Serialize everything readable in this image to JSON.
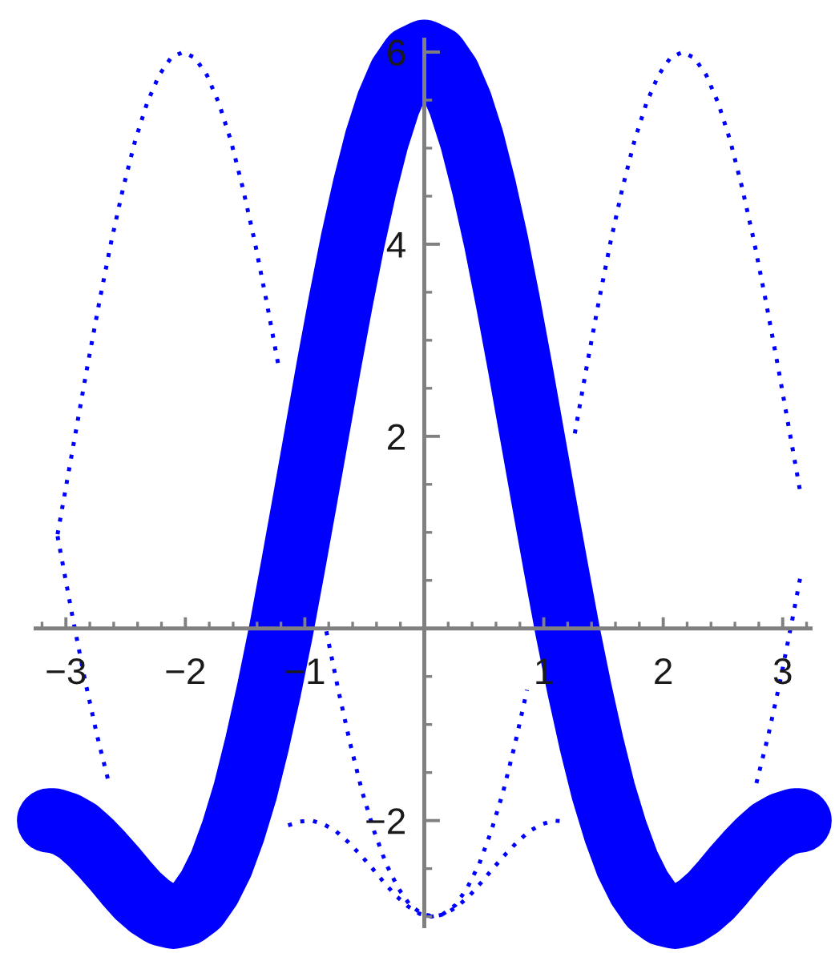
{
  "chart_data": {
    "type": "line",
    "xlim": [
      -3.27,
      3.25
    ],
    "ylim": [
      -3.12,
      6.15
    ],
    "xticks": [
      {
        "value": -3.2,
        "label": null
      },
      {
        "value": -3,
        "label": "−3"
      },
      {
        "value": -2.8,
        "label": null
      },
      {
        "value": -2.6,
        "label": null
      },
      {
        "value": -2.4,
        "label": null
      },
      {
        "value": -2.2,
        "label": null
      },
      {
        "value": -2,
        "label": "−2"
      },
      {
        "value": -1.8,
        "label": null
      },
      {
        "value": -1.6,
        "label": null
      },
      {
        "value": -1.4,
        "label": null
      },
      {
        "value": -1.2,
        "label": null
      },
      {
        "value": -1,
        "label": "−1"
      },
      {
        "value": -0.8,
        "label": null
      },
      {
        "value": -0.6,
        "label": null
      },
      {
        "value": -0.4,
        "label": null
      },
      {
        "value": -0.2,
        "label": null
      },
      {
        "value": 0.2,
        "label": null
      },
      {
        "value": 0.4,
        "label": null
      },
      {
        "value": 0.6,
        "label": null
      },
      {
        "value": 0.8,
        "label": null
      },
      1,
      {
        "value": 1.2,
        "label": null
      },
      {
        "value": 1.4,
        "label": null
      },
      {
        "value": 1.6,
        "label": null
      },
      {
        "value": 1.8,
        "label": null
      },
      2,
      {
        "value": 2.2,
        "label": null
      },
      {
        "value": 2.4,
        "label": null
      },
      {
        "value": 2.6,
        "label": null
      },
      {
        "value": 2.8,
        "label": null
      },
      3,
      {
        "value": 3.2,
        "label": null
      }
    ],
    "yticks": [
      {
        "value": -3,
        "label": null
      },
      {
        "value": -2.5,
        "label": null
      },
      {
        "value": -2,
        "label": "−2"
      },
      {
        "value": -1.5,
        "label": null
      },
      {
        "value": -1,
        "label": null
      },
      {
        "value": -0.5,
        "label": null
      },
      {
        "value": 0.5,
        "label": null
      },
      {
        "value": 1,
        "label": null
      },
      {
        "value": 1.5,
        "label": null
      },
      2,
      {
        "value": 2.5,
        "label": null
      },
      {
        "value": 3,
        "label": null
      },
      {
        "value": 3.5,
        "label": null
      },
      4,
      {
        "value": 4.5,
        "label": null
      },
      {
        "value": 5,
        "label": null
      },
      {
        "value": 5.5,
        "label": null
      },
      6
    ],
    "series": [
      {
        "color": "#0000ff",
        "line_style": "dotted",
        "x": [
          -3.07,
          -3.04,
          -2.94,
          -2.84,
          -2.74,
          -2.64,
          -2.54,
          -2.44,
          -2.34,
          -2.24,
          -2.14,
          -2.04,
          -1.94,
          -1.84,
          -1.74,
          -1.64,
          -1.54,
          -1.44,
          -1.34,
          -1.24,
          -1.14,
          -1.04,
          -0.94,
          -0.84,
          -0.74,
          -0.64,
          -0.54,
          -0.44,
          -0.34,
          -0.24,
          -0.14,
          -0.04,
          0.06,
          0.16,
          0.26,
          0.36,
          0.46,
          0.56,
          0.66,
          0.76,
          0.86,
          0.96,
          1.06,
          1.16,
          1.26,
          1.36,
          1.46,
          1.56,
          1.66,
          1.76,
          1.86,
          1.96,
          2.06,
          2.16,
          2.26,
          2.36,
          2.46,
          2.56,
          2.66,
          2.76,
          2.86,
          2.96,
          3.06,
          3.15
        ],
        "values": [
          0.96,
          0.76,
          0.09,
          -0.54,
          -1.11,
          -1.61,
          null,
          null,
          null,
          null,
          null,
          null,
          null,
          null,
          null,
          null,
          null,
          null,
          null,
          null,
          -2.05,
          -2.01,
          -2.0,
          -2.04,
          -2.11,
          -2.22,
          -2.35,
          -2.49,
          -2.64,
          -2.78,
          -2.89,
          -2.97,
          -3.0,
          -2.97,
          -2.88,
          -2.7,
          -2.45,
          -2.11,
          -1.7,
          -1.2,
          -0.64,
          null,
          null,
          null,
          2.03,
          2.73,
          3.4,
          4.03,
          4.59,
          5.08,
          5.47,
          5.76,
          5.94,
          6.0,
          5.94,
          5.76,
          5.47,
          5.08,
          4.59,
          4.03,
          3.4,
          2.73,
          2.03,
          1.4
        ]
      },
      {
        "color": "#0000ff",
        "line_style": "dotted",
        "x": [
          -3.07,
          -3.02,
          -2.92,
          -2.82,
          -2.72,
          -2.62,
          -2.52,
          -2.42,
          -2.32,
          -2.22,
          -2.12,
          -2.02,
          -1.92,
          -1.82,
          -1.72,
          -1.62,
          -1.52,
          -1.42,
          -1.32,
          -1.22,
          -1.12,
          -1.02,
          -0.92,
          -0.82,
          -0.72,
          -0.62,
          -0.52,
          -0.42,
          -0.32,
          -0.22,
          -0.12,
          -0.02,
          0.08,
          0.18,
          0.28,
          0.38,
          0.48,
          0.58,
          0.68,
          0.78,
          0.88,
          0.98,
          1.08,
          1.18,
          1.28,
          1.38,
          1.48,
          1.58,
          1.68,
          1.78,
          1.88,
          1.98,
          2.08,
          2.18,
          2.28,
          2.38,
          2.48,
          2.58,
          2.68,
          2.78,
          2.88,
          2.98,
          3.08,
          3.15
        ],
        "values": [
          0.98,
          1.33,
          2.03,
          2.73,
          3.4,
          4.03,
          4.59,
          5.08,
          5.47,
          5.76,
          5.94,
          6.0,
          5.94,
          5.76,
          5.47,
          5.08,
          4.59,
          4.03,
          3.4,
          2.73,
          null,
          null,
          null,
          -0.03,
          -0.64,
          -1.2,
          -1.7,
          -2.11,
          -2.45,
          -2.7,
          -2.88,
          -2.97,
          -3.0,
          -2.97,
          -2.89,
          -2.78,
          -2.64,
          -2.49,
          -2.35,
          -2.22,
          -2.11,
          -2.04,
          -2.0,
          -2.01,
          null,
          null,
          null,
          null,
          null,
          null,
          null,
          null,
          null,
          null,
          null,
          null,
          null,
          null,
          null,
          -1.61,
          -1.11,
          -0.54,
          0.09,
          0.55
        ]
      },
      {
        "color": "#0000ff",
        "line_style": "solid",
        "x": [
          -3.14,
          -3.1,
          -3.0,
          -2.9,
          -2.8,
          -2.7,
          -2.6,
          -2.5,
          -2.4,
          -2.3,
          -2.2,
          -2.1,
          -2.0,
          -1.9,
          -1.8,
          -1.7,
          -1.6,
          -1.5,
          -1.4,
          -1.3,
          -1.2,
          -1.1,
          -1.0,
          -0.9,
          -0.8,
          -0.7,
          -0.6,
          -0.5,
          -0.4,
          -0.3,
          -0.2,
          -0.1,
          0,
          0.1,
          0.2,
          0.3,
          0.4,
          0.5,
          0.6,
          0.7,
          0.8,
          0.9,
          1.0,
          1.1,
          1.2,
          1.3,
          1.4,
          1.5,
          1.6,
          1.7,
          1.8,
          1.9,
          2.0,
          2.1,
          2.2,
          2.3,
          2.4,
          2.5,
          2.6,
          2.7,
          2.8,
          2.9,
          3.0,
          3.1,
          3.14
        ],
        "values": [
          -2.0,
          -2.0,
          -2.04,
          -2.11,
          -2.22,
          -2.35,
          -2.49,
          -2.64,
          -2.78,
          -2.89,
          -2.97,
          -3.0,
          -2.97,
          -2.88,
          -2.7,
          -2.45,
          -2.11,
          -1.7,
          -1.2,
          -0.64,
          -0.03,
          0.64,
          1.33,
          2.03,
          2.73,
          3.4,
          4.03,
          4.59,
          5.08,
          5.47,
          5.76,
          5.94,
          6,
          5.94,
          5.76,
          5.47,
          5.08,
          4.59,
          4.03,
          3.4,
          2.73,
          2.03,
          1.33,
          0.64,
          -0.03,
          -0.64,
          -1.2,
          -1.7,
          -2.11,
          -2.45,
          -2.7,
          -2.88,
          -2.97,
          -3.0,
          -2.97,
          -2.89,
          -2.78,
          -2.64,
          -2.49,
          -2.35,
          -2.22,
          -2.11,
          -2.04,
          -2.0,
          -2.0
        ]
      }
    ]
  }
}
